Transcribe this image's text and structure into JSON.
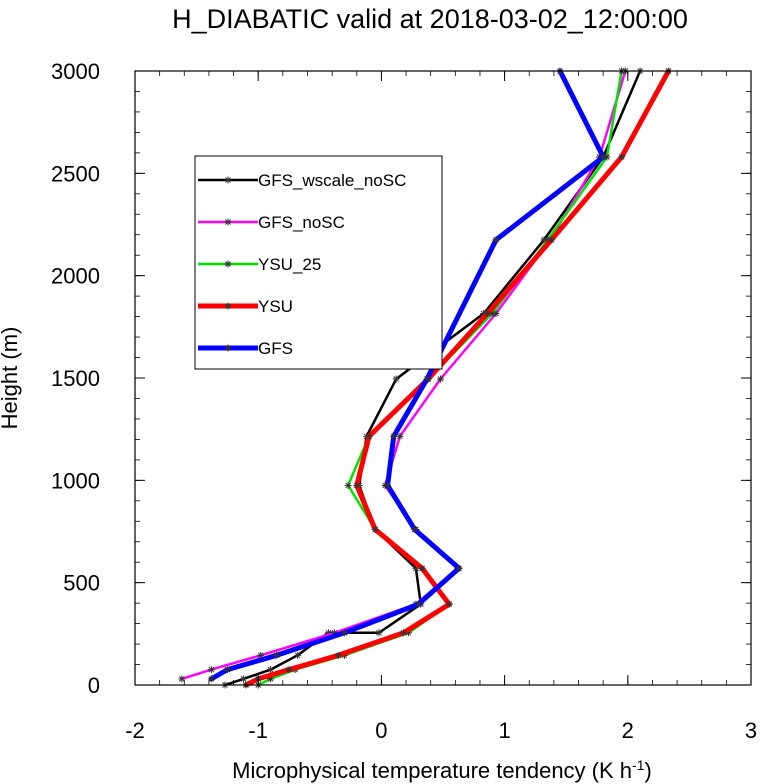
{
  "chart_data": {
    "type": "line",
    "title": "H_DIABATIC valid at 2018-03-02_12:00:00",
    "xlabel": "Microphysical temperature tendency (K h",
    "xlabel_exp": "-1",
    "xlabel_close": ")",
    "ylabel": "Height (m)",
    "xlim": [
      -2,
      3
    ],
    "ylim": [
      0,
      3000
    ],
    "xticks": [
      -2,
      -1,
      0,
      1,
      2,
      3
    ],
    "yticks": [
      0,
      500,
      1000,
      1500,
      2000,
      2500,
      3000
    ],
    "xtick_labels": [
      "-2",
      "-1",
      "0",
      "1",
      "2",
      "3"
    ],
    "ytick_labels": [
      "0",
      "500",
      "1000",
      "1500",
      "2000",
      "2500",
      "3000"
    ],
    "grid": false,
    "legend_position": "upper-left",
    "series": [
      {
        "name": "GFS_wscale_noSC",
        "color": "#000000",
        "width": 2.5,
        "points": [
          [
            -1.27,
            0
          ],
          [
            -1.12,
            30
          ],
          [
            -0.9,
            75
          ],
          [
            -0.68,
            145
          ],
          [
            -0.43,
            255
          ],
          [
            -0.02,
            255
          ],
          [
            0.32,
            395
          ],
          [
            0.28,
            570
          ],
          [
            -0.05,
            760
          ],
          [
            -0.18,
            975
          ],
          [
            -0.12,
            1215
          ],
          [
            0.12,
            1495
          ],
          [
            0.83,
            1815
          ],
          [
            1.32,
            2175
          ],
          [
            1.8,
            2580
          ],
          [
            2.1,
            3000
          ]
        ]
      },
      {
        "name": "GFS_noSC",
        "color": "#ff00ff",
        "width": 2.5,
        "points": [
          [
            -1.62,
            30
          ],
          [
            -1.38,
            75
          ],
          [
            -0.98,
            145
          ],
          [
            -0.38,
            255
          ],
          [
            0.28,
            395
          ],
          [
            0.62,
            570
          ],
          [
            0.28,
            760
          ],
          [
            0.03,
            975
          ],
          [
            0.15,
            1215
          ],
          [
            0.48,
            1495
          ],
          [
            0.93,
            1815
          ],
          [
            1.37,
            2175
          ],
          [
            1.77,
            2580
          ],
          [
            1.98,
            3000
          ]
        ]
      },
      {
        "name": "YSU_25",
        "color": "#00e000",
        "width": 2.5,
        "points": [
          [
            -1.0,
            0
          ],
          [
            -0.9,
            30
          ],
          [
            -0.7,
            75
          ],
          [
            -0.3,
            145
          ],
          [
            0.22,
            255
          ],
          [
            0.55,
            395
          ],
          [
            0.33,
            570
          ],
          [
            -0.05,
            760
          ],
          [
            -0.27,
            975
          ],
          [
            -0.1,
            1215
          ],
          [
            0.38,
            1495
          ],
          [
            0.9,
            1815
          ],
          [
            1.35,
            2175
          ],
          [
            1.83,
            2580
          ],
          [
            1.95,
            3000
          ]
        ]
      },
      {
        "name": "YSU",
        "color": "#ff0000",
        "width": 5,
        "points": [
          [
            -1.1,
            0
          ],
          [
            -1.0,
            30
          ],
          [
            -0.75,
            75
          ],
          [
            -0.35,
            145
          ],
          [
            0.18,
            255
          ],
          [
            0.55,
            395
          ],
          [
            0.33,
            570
          ],
          [
            -0.05,
            760
          ],
          [
            -0.2,
            975
          ],
          [
            -0.1,
            1215
          ],
          [
            0.38,
            1495
          ],
          [
            0.86,
            1815
          ],
          [
            1.38,
            2175
          ],
          [
            1.95,
            2580
          ],
          [
            2.33,
            3000
          ]
        ]
      },
      {
        "name": "GFS",
        "color": "#0000ff",
        "width": 5,
        "points": [
          [
            -1.38,
            30
          ],
          [
            -1.25,
            75
          ],
          [
            -0.85,
            145
          ],
          [
            -0.3,
            255
          ],
          [
            0.3,
            395
          ],
          [
            0.63,
            570
          ],
          [
            0.27,
            760
          ],
          [
            0.05,
            975
          ],
          [
            0.1,
            1215
          ],
          [
            0.37,
            1495
          ],
          [
            0.93,
            2175
          ],
          [
            1.8,
            2580
          ],
          [
            1.45,
            3000
          ]
        ]
      }
    ]
  }
}
